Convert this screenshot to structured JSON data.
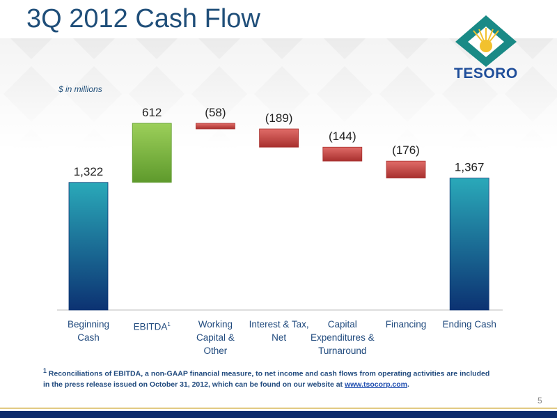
{
  "title": "3Q 2012 Cash Flow",
  "logo": {
    "text": "TESORO"
  },
  "chart_data": {
    "type": "waterfall",
    "subtitle": "$ in millions",
    "categories": [
      "Beginning Cash",
      "EBITDA",
      "Working Capital & Other",
      "Interest & Tax, Net",
      "Capital Expenditures & Turnaround",
      "Financing",
      "Ending Cash"
    ],
    "category_markers": [
      null,
      "1",
      null,
      null,
      null,
      null,
      null
    ],
    "values": [
      1322,
      612,
      -58,
      -189,
      -144,
      -176,
      1367
    ],
    "value_labels": [
      "1,322",
      "612",
      "(58)",
      "(189)",
      "(144)",
      "(176)",
      "1,367"
    ],
    "measure": [
      "absolute",
      "relative",
      "relative",
      "relative",
      "relative",
      "relative",
      "total"
    ],
    "colors": {
      "total": [
        "#2aa9b9",
        "#0c3272"
      ],
      "increase": [
        "#9ccf5a",
        "#5e9a2c"
      ],
      "decrease": [
        "#e06c68",
        "#a8302e"
      ]
    }
  },
  "footnote": {
    "marker": "1",
    "text": "Reconciliations of EBITDA, a non-GAAP financial measure, to net income and cash flows from operating activities are included in the press release issued on October 31, 2012, which can be found on our website at ",
    "link": "www.tsocorp.com",
    "end": "."
  },
  "page_number": "5"
}
